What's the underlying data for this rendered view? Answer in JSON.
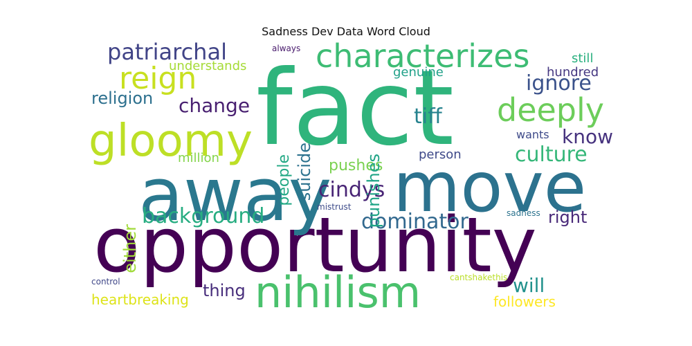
{
  "chart_data": {
    "type": "wordcloud",
    "title": "Sadness Dev Data Word Cloud",
    "background": "#ffffff",
    "words": [
      {
        "text": "fact",
        "color": "#2fb47c"
      },
      {
        "text": "opportunity",
        "color": "#440154"
      },
      {
        "text": "away",
        "color": "#2a788e"
      },
      {
        "text": "move",
        "color": "#2c728e"
      },
      {
        "text": "nihilism",
        "color": "#4ac16d"
      },
      {
        "text": "gloomy",
        "color": "#bddf26"
      },
      {
        "text": "characterizes",
        "color": "#3dbc74"
      },
      {
        "text": "deeply",
        "color": "#6ccd5a"
      },
      {
        "text": "reign",
        "color": "#c8e020"
      },
      {
        "text": "patriarchal",
        "color": "#414487"
      },
      {
        "text": "background",
        "color": "#27ad81"
      },
      {
        "text": "dominator",
        "color": "#31688e"
      },
      {
        "text": "culture",
        "color": "#35b779"
      },
      {
        "text": "cindys",
        "color": "#482475"
      },
      {
        "text": "ignore",
        "color": "#3b528b"
      },
      {
        "text": "change",
        "color": "#481f70"
      },
      {
        "text": "tiff",
        "color": "#26828e"
      },
      {
        "text": "know",
        "color": "#46327e"
      },
      {
        "text": "will",
        "color": "#21918c"
      },
      {
        "text": "religion",
        "color": "#2d708e"
      },
      {
        "text": "right",
        "color": "#482878"
      },
      {
        "text": "thing",
        "color": "#472d7b"
      },
      {
        "text": "pushes",
        "color": "#7ad151"
      },
      {
        "text": "suicide",
        "color": "#2c728e"
      },
      {
        "text": "punishes",
        "color": "#20a486"
      },
      {
        "text": "people",
        "color": "#22a884"
      },
      {
        "text": "either",
        "color": "#a0da39"
      },
      {
        "text": "heartbreaking",
        "color": "#dde318"
      },
      {
        "text": "followers",
        "color": "#fde725"
      },
      {
        "text": "genuine",
        "color": "#1fa088"
      },
      {
        "text": "hundred",
        "color": "#453781"
      },
      {
        "text": "understands",
        "color": "#a5db36"
      },
      {
        "text": "still",
        "color": "#2ab07f"
      },
      {
        "text": "million",
        "color": "#84d44b"
      },
      {
        "text": "person",
        "color": "#3e4989"
      },
      {
        "text": "wants",
        "color": "#3e4a89"
      },
      {
        "text": "always",
        "color": "#481a6c"
      },
      {
        "text": "mistrust",
        "color": "#3e4c8a"
      },
      {
        "text": "control",
        "color": "#3f4788"
      },
      {
        "text": "sadness",
        "color": "#2c738e"
      },
      {
        "text": "cantshakethis",
        "color": "#bade28"
      }
    ]
  }
}
